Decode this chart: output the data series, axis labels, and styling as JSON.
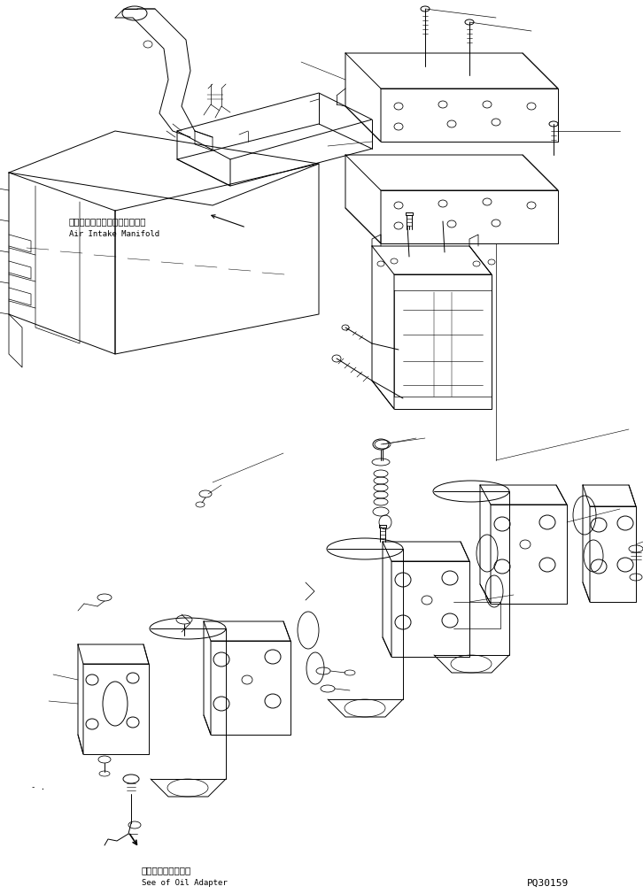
{
  "bg_color": "#ffffff",
  "line_color": "#000000",
  "lw": 0.7,
  "fig_width": 7.26,
  "fig_height": 10.1,
  "dpi": 100,
  "label_air_intake_jp": "エアーインテークマニホールド",
  "label_air_intake_en": "Air Intake Manifold",
  "label_oil_adapter_jp": "オイルアダプタ参照",
  "label_oil_adapter_en": "See of Oil Adapter",
  "label_part_no": "PQ30159",
  "fs_small": 6.5,
  "fs_label": 7.5,
  "fs_partno": 8
}
